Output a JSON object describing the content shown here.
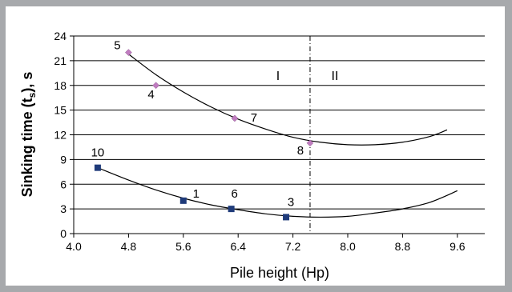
{
  "chart_data": {
    "type": "scatter",
    "title": "",
    "xlabel": "Pile height (Hp)",
    "ylabel": "Sinking time (t_s), s",
    "ylabel_parts": {
      "pre": "Sinking time (t",
      "sub": "s",
      "post": "), s"
    },
    "xlim": [
      4.0,
      10.0
    ],
    "ylim": [
      0,
      24
    ],
    "xticks": [
      "4.0",
      "4.8",
      "5.6",
      "6.4",
      "7.2",
      "8.0",
      "8.8",
      "9.6"
    ],
    "yticks": [
      "0",
      "3",
      "6",
      "9",
      "12",
      "15",
      "18",
      "21",
      "24"
    ],
    "grid": "horizontal",
    "divider_x": 7.45,
    "region_labels": [
      "I",
      "II"
    ],
    "series": [
      {
        "marker": "diamond",
        "color": "#c07cc0",
        "points": [
          {
            "x": 4.8,
            "y": 22,
            "label": "5"
          },
          {
            "x": 5.2,
            "y": 18,
            "label": "4"
          },
          {
            "x": 6.35,
            "y": 14,
            "label": "7"
          },
          {
            "x": 7.45,
            "y": 11,
            "label": "8"
          }
        ],
        "trend": [
          [
            4.8,
            21.8
          ],
          [
            5.2,
            19.3
          ],
          [
            5.6,
            17.2
          ],
          [
            6.0,
            15.4
          ],
          [
            6.4,
            13.9
          ],
          [
            6.8,
            12.7
          ],
          [
            7.2,
            11.7
          ],
          [
            7.6,
            11.1
          ],
          [
            8.0,
            10.8
          ],
          [
            8.4,
            10.8
          ],
          [
            8.8,
            11.1
          ],
          [
            9.2,
            11.8
          ],
          [
            9.45,
            12.6
          ]
        ]
      },
      {
        "marker": "square",
        "color": "#1f3b7a",
        "points": [
          {
            "x": 4.35,
            "y": 8,
            "label": "10"
          },
          {
            "x": 5.6,
            "y": 4,
            "label": "1"
          },
          {
            "x": 6.3,
            "y": 3,
            "label": "6"
          },
          {
            "x": 7.1,
            "y": 2,
            "label": "3"
          }
        ],
        "trend": [
          [
            4.35,
            8.0
          ],
          [
            4.8,
            6.5
          ],
          [
            5.2,
            5.3
          ],
          [
            5.6,
            4.3
          ],
          [
            6.0,
            3.5
          ],
          [
            6.4,
            2.9
          ],
          [
            6.8,
            2.4
          ],
          [
            7.2,
            2.1
          ],
          [
            7.6,
            2.0
          ],
          [
            8.0,
            2.1
          ],
          [
            8.4,
            2.5
          ],
          [
            8.8,
            3.0
          ],
          [
            9.2,
            3.8
          ],
          [
            9.6,
            5.2
          ]
        ]
      }
    ]
  }
}
